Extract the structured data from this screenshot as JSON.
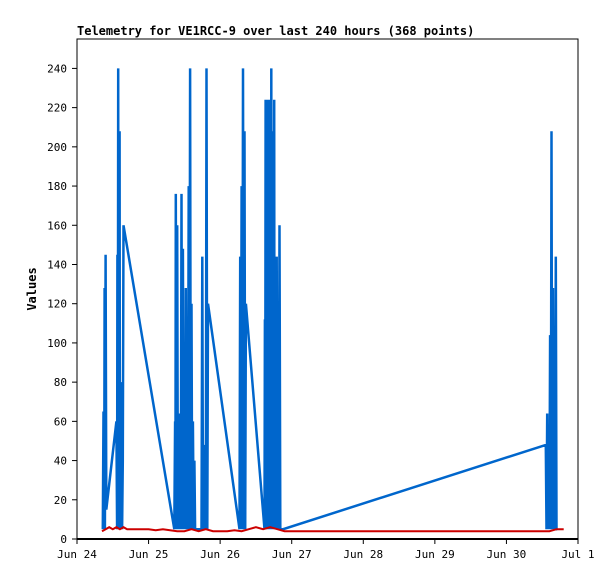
{
  "chart_data": {
    "type": "line",
    "title": "Telemetry for VE1RCC-9 over last 240 hours (368 points)",
    "xlabel": "",
    "ylabel": "Values",
    "xlim": [
      "Jun 24",
      "Jul 1"
    ],
    "ylim": [
      0,
      255
    ],
    "x_ticks": [
      "Jun 24",
      "Jun 25",
      "Jun 26",
      "Jun 27",
      "Jun 28",
      "Jun 29",
      "Jun 30",
      "Jul 1"
    ],
    "y_ticks": [
      0,
      20,
      40,
      60,
      80,
      100,
      120,
      140,
      160,
      180,
      200,
      220,
      240
    ],
    "grid": false,
    "series": [
      {
        "color": "#0066cc",
        "x": [
          0.36,
          0.37,
          0.38,
          0.385,
          0.39,
          0.4,
          0.41,
          0.55,
          0.56,
          0.565,
          0.57,
          0.575,
          0.58,
          0.585,
          0.59,
          0.595,
          0.6,
          0.605,
          0.61,
          0.62,
          0.63,
          0.64,
          0.65,
          1.36,
          1.37,
          1.375,
          1.38,
          1.39,
          1.4,
          1.41,
          1.42,
          1.43,
          1.44,
          1.45,
          1.46,
          1.47,
          1.48,
          1.49,
          1.5,
          1.51,
          1.52,
          1.53,
          1.54,
          1.55,
          1.56,
          1.57,
          1.58,
          1.59,
          1.6,
          1.61,
          1.62,
          1.63,
          1.64,
          1.65,
          1.66,
          1.74,
          1.75,
          1.76,
          1.77,
          1.78,
          1.79,
          1.8,
          1.81,
          1.82,
          1.83,
          2.27,
          2.28,
          2.29,
          2.3,
          2.31,
          2.32,
          2.33,
          2.34,
          2.35,
          2.36,
          2.62,
          2.625,
          2.63,
          2.635,
          2.64,
          2.645,
          2.65,
          2.655,
          2.66,
          2.665,
          2.67,
          2.675,
          2.68,
          2.685,
          2.69,
          2.695,
          2.7,
          2.705,
          2.71,
          2.715,
          2.72,
          2.725,
          2.73,
          2.735,
          2.74,
          2.745,
          2.75,
          2.755,
          2.76,
          2.77,
          2.78,
          2.79,
          2.8,
          2.81,
          2.82,
          2.83,
          2.84,
          2.85,
          2.86,
          2.87,
          2.88,
          6.55,
          6.56,
          6.57,
          6.58,
          6.59,
          6.6,
          6.61,
          6.62,
          6.63,
          6.64,
          6.65,
          6.66,
          6.67,
          6.68,
          6.69,
          6.7,
          6.71
        ],
        "values": [
          5,
          65,
          10,
          128,
          5,
          145,
          15,
          60,
          5,
          145,
          5,
          240,
          10,
          96,
          5,
          208,
          10,
          40,
          5,
          80,
          5,
          40,
          160,
          5,
          60,
          5,
          176,
          5,
          160,
          5,
          64,
          5,
          44,
          5,
          176,
          5,
          148,
          5,
          30,
          5,
          128,
          5,
          60,
          5,
          180,
          5,
          240,
          5,
          120,
          5,
          60,
          5,
          40,
          5,
          5,
          5,
          144,
          5,
          48,
          5,
          40,
          5,
          240,
          5,
          120,
          5,
          144,
          5,
          180,
          5,
          240,
          5,
          208,
          5,
          120,
          5,
          112,
          5,
          224,
          5,
          204,
          5,
          160,
          5,
          224,
          5,
          48,
          5,
          224,
          5,
          192,
          5,
          64,
          5,
          240,
          5,
          112,
          5,
          144,
          5,
          208,
          5,
          224,
          5,
          40,
          5,
          144,
          5,
          80,
          5,
          160,
          5,
          5,
          5,
          5,
          5,
          48,
          5,
          64,
          5,
          32,
          5,
          104,
          5,
          208,
          5,
          128,
          5,
          48,
          5,
          144,
          5,
          5
        ]
      },
      {
        "color": "#cc0000",
        "x": [
          0.35,
          0.4,
          0.45,
          0.5,
          0.55,
          0.6,
          0.65,
          0.7,
          0.8,
          0.9,
          1.0,
          1.1,
          1.2,
          1.3,
          1.4,
          1.5,
          1.6,
          1.7,
          1.8,
          1.9,
          2.0,
          2.1,
          2.2,
          2.3,
          2.4,
          2.5,
          2.6,
          2.7,
          2.8,
          2.9,
          3.0,
          3.5,
          4.0,
          4.5,
          5.0,
          5.5,
          6.0,
          6.5,
          6.6,
          6.7,
          6.8
        ],
        "values": [
          4,
          5,
          6,
          5,
          6,
          5,
          6,
          5,
          5,
          5,
          5,
          4.5,
          5,
          4.5,
          4,
          4,
          5,
          4,
          5,
          4,
          4,
          4,
          4.5,
          4,
          5,
          6,
          5,
          6,
          5,
          4,
          4,
          4,
          4,
          4,
          4,
          4,
          4,
          4,
          4,
          5,
          5
        ]
      }
    ]
  }
}
